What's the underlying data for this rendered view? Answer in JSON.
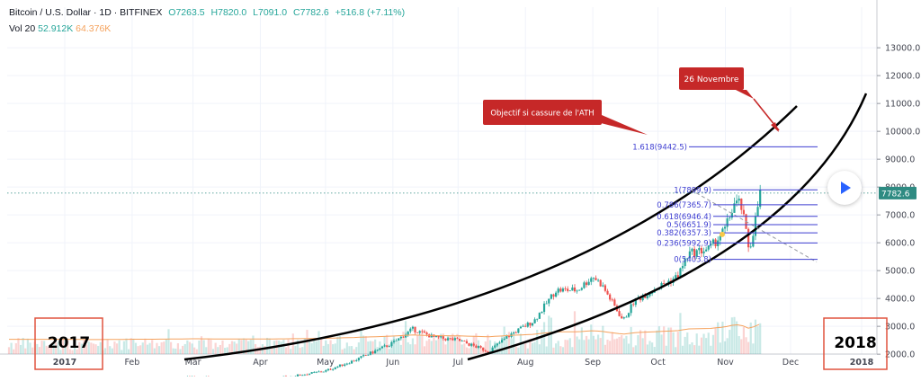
{
  "header": {
    "symbol": "Bitcoin / U.S. Dollar · 1D · BITFINEX",
    "open": "O7263.5",
    "high": "H7820.0",
    "low": "L7091.0",
    "close": "C7782.6",
    "change": "+516.8 (+7.11%)",
    "vol_label": "Vol 20",
    "vol_value": "52.912K",
    "vol_ma": "64.376K"
  },
  "annotations": {
    "objective": "Objectif si cassure de l'ATH",
    "date_callout": "26 Novembre",
    "year_left": "2017",
    "year_right": "2018"
  },
  "colors": {
    "up": "#26a69a",
    "down": "#ef5350",
    "fib": "#3e3ed1",
    "callout": "#c62828",
    "price_tag": "#2e8b82",
    "box": "#e0533f",
    "curve": "#000000",
    "vol_ma": "#f5a25d"
  },
  "chart_data": {
    "type": "candlestick",
    "title": "Bitcoin / U.S. Dollar · 1D · BITFINEX",
    "x_ticks": [
      "2017",
      "Feb",
      "Mar",
      "Apr",
      "May",
      "Jun",
      "Jul",
      "Aug",
      "Sep",
      "Oct",
      "Nov",
      "Dec",
      "2018"
    ],
    "y_ticks": [
      2000,
      3000,
      4000,
      5000,
      6000,
      7000,
      8000,
      9000,
      10000,
      11000,
      12000,
      13000
    ],
    "y_tick_labels": [
      "2000.0",
      "3000.0",
      "4000.0",
      "5000.0",
      "6000.0",
      "7000.0",
      "8000.0",
      "9000.0",
      "10000.0",
      "11000.0",
      "12000.0",
      "13000.0"
    ],
    "ylim": [
      1150,
      14150
    ],
    "last_price": 7782.6,
    "last_price_label": "7782.6",
    "price_path": [
      [
        "2017-01-01",
        980
      ],
      [
        "2017-01-15",
        820
      ],
      [
        "2017-02-01",
        980
      ],
      [
        "2017-02-15",
        1030
      ],
      [
        "2017-03-01",
        1200
      ],
      [
        "2017-03-15",
        1100
      ],
      [
        "2017-04-01",
        1080
      ],
      [
        "2017-04-15",
        1200
      ],
      [
        "2017-05-01",
        1400
      ],
      [
        "2017-05-15",
        1800
      ],
      [
        "2017-06-01",
        2400
      ],
      [
        "2017-06-10",
        2900
      ],
      [
        "2017-06-20",
        2600
      ],
      [
        "2017-07-01",
        2500
      ],
      [
        "2017-07-15",
        2100
      ],
      [
        "2017-07-25",
        2700
      ],
      [
        "2017-08-05",
        3200
      ],
      [
        "2017-08-15",
        4300
      ],
      [
        "2017-08-25",
        4300
      ],
      [
        "2017-09-01",
        4800
      ],
      [
        "2017-09-05",
        4500
      ],
      [
        "2017-09-15",
        3200
      ],
      [
        "2017-09-20",
        3900
      ],
      [
        "2017-10-01",
        4400
      ],
      [
        "2017-10-10",
        4800
      ],
      [
        "2017-10-15",
        5600
      ],
      [
        "2017-10-25",
        5800
      ],
      [
        "2017-11-01",
        6500
      ],
      [
        "2017-11-05",
        7400
      ],
      [
        "2017-11-08",
        7400
      ],
      [
        "2017-11-10",
        6600
      ],
      [
        "2017-11-12",
        5700
      ],
      [
        "2017-11-15",
        6900
      ],
      [
        "2017-11-17",
        7782.6
      ]
    ],
    "fibonacci": [
      {
        "label": "1.618(9442.5)",
        "value": 9442.5
      },
      {
        "label": "1(7899.9)",
        "value": 7899.9
      },
      {
        "label": "0.786(7365.7)",
        "value": 7365.7
      },
      {
        "label": "0.618(6946.4)",
        "value": 6946.4
      },
      {
        "label": "0.5(6651.9)",
        "value": 6651.9
      },
      {
        "label": "0.382(6357.3)",
        "value": 6357.3
      },
      {
        "label": "0.236(5992.9)",
        "value": 5992.9
      },
      {
        "label": "0(5403.8)",
        "value": 5403.8
      }
    ],
    "volume_ma": "64.376K",
    "grid": true
  }
}
